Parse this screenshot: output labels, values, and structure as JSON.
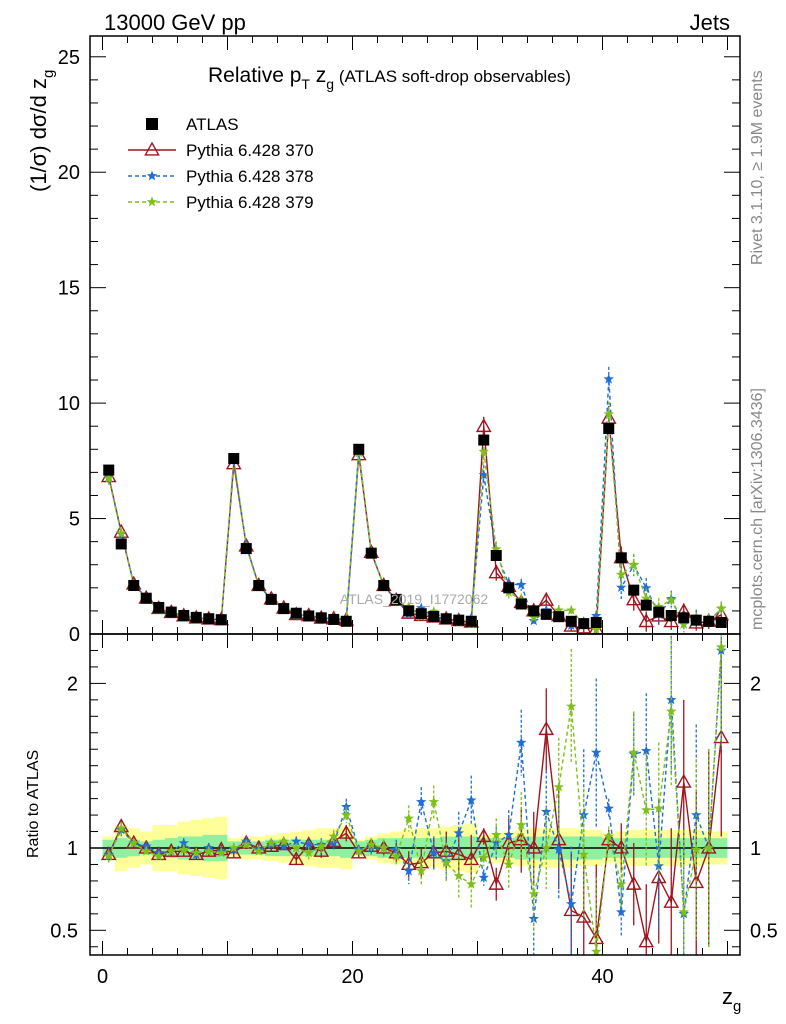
{
  "header": {
    "left": "13000 GeV pp",
    "right": "Jets"
  },
  "side_labels": {
    "rivet": "Rivet 3.1.10, ≥ 1.9M events",
    "mcplots": "mcplots.cern.ch [arXiv:1306.3436]"
  },
  "watermark": "ATLAS_2019_I1772062",
  "colors": {
    "atlas": "#000000",
    "p370": "#a0141e",
    "p378": "#1f6fd6",
    "p379": "#7fbf1a",
    "band_inner": "#8ff0a0",
    "band_outer": "#ffff99"
  },
  "chart_data": {
    "type": "line",
    "title_main": "Relative p",
    "title_sub_T": "T",
    "title_mid": " z",
    "title_sub_g": "g",
    "title_tail": " (ATLAS soft-drop observables)",
    "ylabel": "(1/σ) dσ/d z",
    "ylabel_sub": "g",
    "xlabel": "z",
    "xlabel_sub": "g",
    "ratio_ylabel": "Ratio to ATLAS",
    "xlim": [
      -1,
      51
    ],
    "ylim": [
      0,
      25.9
    ],
    "ratio_ylim": [
      0.35,
      2.3
    ],
    "x_ticks": [
      0,
      20,
      40
    ],
    "y_ticks": [
      0,
      5,
      10,
      15,
      20,
      25
    ],
    "ratio_ticks": [
      0.5,
      1,
      2
    ],
    "x": [
      0.5,
      1.5,
      2.5,
      3.5,
      4.5,
      5.5,
      6.5,
      7.5,
      8.5,
      9.5,
      10.5,
      11.5,
      12.5,
      13.5,
      14.5,
      15.5,
      16.5,
      17.5,
      18.5,
      19.5,
      20.5,
      21.5,
      22.5,
      23.5,
      24.5,
      25.5,
      26.5,
      27.5,
      28.5,
      29.5,
      30.5,
      31.5,
      32.5,
      33.5,
      34.5,
      35.5,
      36.5,
      37.5,
      38.5,
      39.5,
      40.5,
      41.5,
      42.5,
      43.5,
      44.5,
      45.5,
      46.5,
      47.5,
      48.5,
      49.5
    ],
    "atlas": [
      7.1,
      3.9,
      2.1,
      1.55,
      1.15,
      0.95,
      0.8,
      0.72,
      0.66,
      0.62,
      7.6,
      3.7,
      2.1,
      1.5,
      1.1,
      0.9,
      0.78,
      0.7,
      0.63,
      0.55,
      8.0,
      3.5,
      2.1,
      1.5,
      1.0,
      0.88,
      0.76,
      0.66,
      0.6,
      0.55,
      8.4,
      3.4,
      2.0,
      1.3,
      1.0,
      0.85,
      0.75,
      0.55,
      0.45,
      0.5,
      8.9,
      3.3,
      1.9,
      1.25,
      0.95,
      0.8,
      0.7,
      0.6,
      0.55,
      0.5
    ],
    "ratio_band": {
      "inner": [
        0.05,
        0.06,
        0.05,
        0.04,
        0.05,
        0.06,
        0.07,
        0.07,
        0.08,
        0.08,
        0.04,
        0.04,
        0.04,
        0.05,
        0.05,
        0.05,
        0.05,
        0.05,
        0.05,
        0.06,
        0.04,
        0.05,
        0.06,
        0.06,
        0.06,
        0.06,
        0.06,
        0.07,
        0.07,
        0.07,
        0.06,
        0.06,
        0.06,
        0.07,
        0.07,
        0.07,
        0.07,
        0.07,
        0.07,
        0.07,
        0.06,
        0.06,
        0.06,
        0.06,
        0.06,
        0.06,
        0.06,
        0.06,
        0.06,
        0.06
      ],
      "outer": [
        0.07,
        0.14,
        0.12,
        0.1,
        0.14,
        0.14,
        0.16,
        0.17,
        0.18,
        0.19,
        0.06,
        0.07,
        0.07,
        0.08,
        0.09,
        0.1,
        0.11,
        0.12,
        0.12,
        0.13,
        0.05,
        0.07,
        0.09,
        0.1,
        0.11,
        0.12,
        0.12,
        0.13,
        0.14,
        0.15,
        0.08,
        0.09,
        0.1,
        0.11,
        0.12,
        0.12,
        0.12,
        0.12,
        0.11,
        0.11,
        0.09,
        0.1,
        0.11,
        0.11,
        0.11,
        0.11,
        0.11,
        0.11,
        0.1,
        0.1
      ]
    },
    "series": [
      {
        "name": "ATLAS",
        "key": "atlas",
        "values": [
          7.1,
          3.9,
          2.1,
          1.55,
          1.15,
          0.95,
          0.8,
          0.72,
          0.66,
          0.62,
          7.6,
          3.7,
          2.1,
          1.5,
          1.1,
          0.9,
          0.78,
          0.7,
          0.63,
          0.55,
          8.0,
          3.5,
          2.1,
          1.5,
          1.0,
          0.88,
          0.76,
          0.66,
          0.6,
          0.55,
          8.4,
          3.4,
          2.0,
          1.3,
          1.0,
          0.85,
          0.75,
          0.55,
          0.45,
          0.5,
          8.9,
          3.3,
          1.9,
          1.25,
          0.95,
          0.8,
          0.7,
          0.6,
          0.55,
          0.5
        ]
      },
      {
        "name": "Pythia 6.428 370",
        "key": "p370",
        "ratio": [
          0.96,
          1.13,
          1.03,
          1.0,
          0.96,
          0.98,
          0.98,
          0.96,
          0.98,
          0.99,
          0.97,
          1.03,
          1.0,
          1.01,
          1.02,
          0.93,
          1.02,
          0.98,
          1.04,
          1.09,
          0.97,
          1.01,
          1.0,
          0.97,
          0.9,
          0.91,
          0.97,
          0.98,
          0.96,
          0.93,
          1.07,
          0.78,
          1.03,
          1.05,
          1.0,
          1.72,
          1.05,
          0.62,
          0.58,
          0.45,
          1.05,
          1.0,
          0.78,
          0.43,
          0.82,
          0.67,
          1.4,
          0.79,
          1.0,
          1.67
        ],
        "err": [
          0.04,
          0.04,
          0.03,
          0.03,
          0.03,
          0.03,
          0.03,
          0.03,
          0.03,
          0.03,
          0.03,
          0.03,
          0.03,
          0.03,
          0.03,
          0.03,
          0.04,
          0.04,
          0.04,
          0.05,
          0.03,
          0.04,
          0.05,
          0.06,
          0.08,
          0.09,
          0.1,
          0.12,
          0.13,
          0.15,
          0.05,
          0.1,
          0.15,
          0.2,
          0.22,
          0.25,
          0.3,
          0.35,
          0.4,
          0.45,
          0.06,
          0.15,
          0.25,
          0.35,
          0.4,
          0.45,
          0.5,
          0.55,
          0.6,
          0.6
        ]
      },
      {
        "name": "Pythia 6.428 378",
        "key": "p378",
        "ratio": [
          0.96,
          1.11,
          1.03,
          1.01,
          0.97,
          0.98,
          1.03,
          0.96,
          1.0,
          0.98,
          0.99,
          1.04,
          0.99,
          1.02,
          1.01,
          1.04,
          1.02,
          1.02,
          1.03,
          1.25,
          0.99,
          1.0,
          1.0,
          0.99,
          0.86,
          1.28,
          0.97,
          0.92,
          1.09,
          1.29,
          0.82,
          1.03,
          1.08,
          1.64,
          0.57,
          1.22,
          0.99,
          0.66,
          1.2,
          1.58,
          1.24,
          0.61,
          1.57,
          1.59,
          0.89,
          1.9,
          0.6,
          1.2,
          1.0,
          2.2
        ],
        "err": [
          0.04,
          0.04,
          0.03,
          0.03,
          0.03,
          0.03,
          0.03,
          0.03,
          0.03,
          0.03,
          0.03,
          0.03,
          0.03,
          0.03,
          0.03,
          0.03,
          0.04,
          0.04,
          0.04,
          0.05,
          0.03,
          0.04,
          0.05,
          0.06,
          0.08,
          0.09,
          0.1,
          0.12,
          0.13,
          0.15,
          0.05,
          0.1,
          0.15,
          0.2,
          0.22,
          0.25,
          0.3,
          0.35,
          0.4,
          0.45,
          0.06,
          0.15,
          0.25,
          0.35,
          0.4,
          0.45,
          0.5,
          0.55,
          0.6,
          0.6
        ]
      },
      {
        "name": "Pythia 6.428 379",
        "key": "p379",
        "ratio": [
          0.95,
          1.12,
          1.03,
          0.98,
          0.95,
          0.98,
          0.99,
          0.97,
          0.98,
          0.97,
          1.0,
          1.02,
          0.98,
          1.03,
          1.04,
          1.0,
          0.97,
          1.01,
          1.07,
          1.2,
          0.98,
          1.02,
          1.0,
          0.95,
          1.18,
          0.86,
          1.28,
          0.91,
          0.83,
          0.78,
          0.94,
          1.08,
          0.9,
          1.14,
          0.72,
          1.0,
          1.37,
          1.86,
          0.96,
          0.37,
          1.07,
          0.78,
          1.58,
          1.23,
          1.24,
          1.83,
          0.61,
          0.99,
          1.0,
          2.22
        ],
        "err": [
          0.04,
          0.04,
          0.03,
          0.03,
          0.03,
          0.03,
          0.03,
          0.03,
          0.03,
          0.03,
          0.03,
          0.03,
          0.03,
          0.03,
          0.03,
          0.03,
          0.04,
          0.04,
          0.04,
          0.05,
          0.03,
          0.04,
          0.05,
          0.06,
          0.08,
          0.09,
          0.1,
          0.12,
          0.13,
          0.15,
          0.05,
          0.1,
          0.15,
          0.2,
          0.22,
          0.25,
          0.3,
          0.35,
          0.4,
          0.45,
          0.06,
          0.15,
          0.25,
          0.35,
          0.4,
          0.45,
          0.5,
          0.55,
          0.6,
          0.6
        ]
      }
    ],
    "legend_placement": "top-left"
  }
}
